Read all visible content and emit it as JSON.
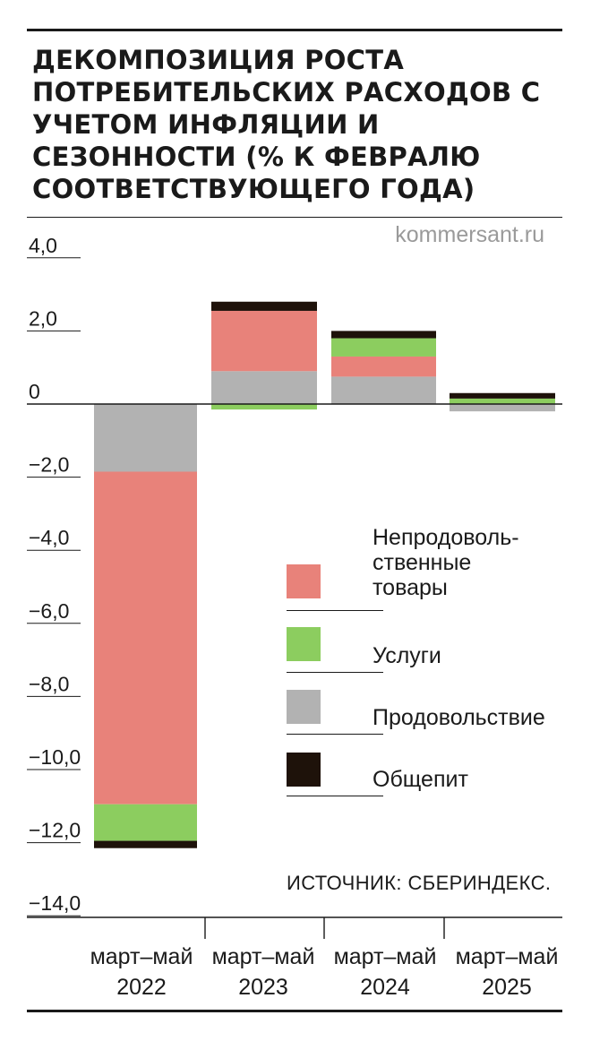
{
  "title": "ДЕКОМПОЗИЦИЯ РОСТА ПОТРЕБИТЕЛЬСКИХ РАСХОДОВ С УЧЕТОМ ИНФЛЯЦИИ И СЕЗОННОСТИ (% К ФЕВРАЛЮ СООТВЕТСТВУЮЩЕГО ГОДА)",
  "watermark": "kommersant.ru",
  "source": "ИСТОЧНИК: СБЕРИНДЕКС.",
  "legend": [
    {
      "label": "Непродоволь-\nственные\nтовары",
      "color": "#e8827a"
    },
    {
      "label": "Услуги",
      "color": "#8ccd5f"
    },
    {
      "label": "Продовольствие",
      "color": "#b2b2b2"
    },
    {
      "label": "Общепит",
      "color": "#1e120a"
    }
  ],
  "chart_data": {
    "type": "bar",
    "stacked": true,
    "title": "ДЕКОМПОЗИЦИЯ РОСТА ПОТРЕБИТЕЛЬСКИХ РАСХОДОВ С УЧЕТОМ ИНФЛЯЦИИ И СЕЗОННОСТИ (% К ФЕВРАЛЮ СООТВЕТСТВУЮЩЕГО ГОДА)",
    "categories": [
      "март–май\n2022",
      "март–май\n2023",
      "март–май\n2024",
      "март–май\n2025"
    ],
    "yticks": [
      "4,0",
      "2,0",
      "0",
      "−2,0",
      "−4,0",
      "−6,0",
      "−8,0",
      "−10,0",
      "−12,0",
      "−14,0"
    ],
    "ytick_values": [
      4,
      2,
      0,
      -2,
      -4,
      -6,
      -8,
      -10,
      -12,
      -14
    ],
    "ylim": [
      -14,
      4
    ],
    "grid": false,
    "legend_position": "right",
    "series": [
      {
        "name": "Продовольствие",
        "color": "#b2b2b2",
        "values": [
          -1.85,
          0.9,
          0.75,
          -0.2
        ]
      },
      {
        "name": "Непродовольственные товары",
        "color": "#e8827a",
        "values": [
          -9.1,
          1.65,
          0.55,
          0.0
        ]
      },
      {
        "name": "Услуги",
        "color": "#8ccd5f",
        "values": [
          -1.0,
          -0.15,
          0.5,
          0.15
        ]
      },
      {
        "name": "Общепит",
        "color": "#1e120a",
        "values": [
          -0.2,
          0.25,
          0.2,
          0.15
        ]
      }
    ]
  }
}
